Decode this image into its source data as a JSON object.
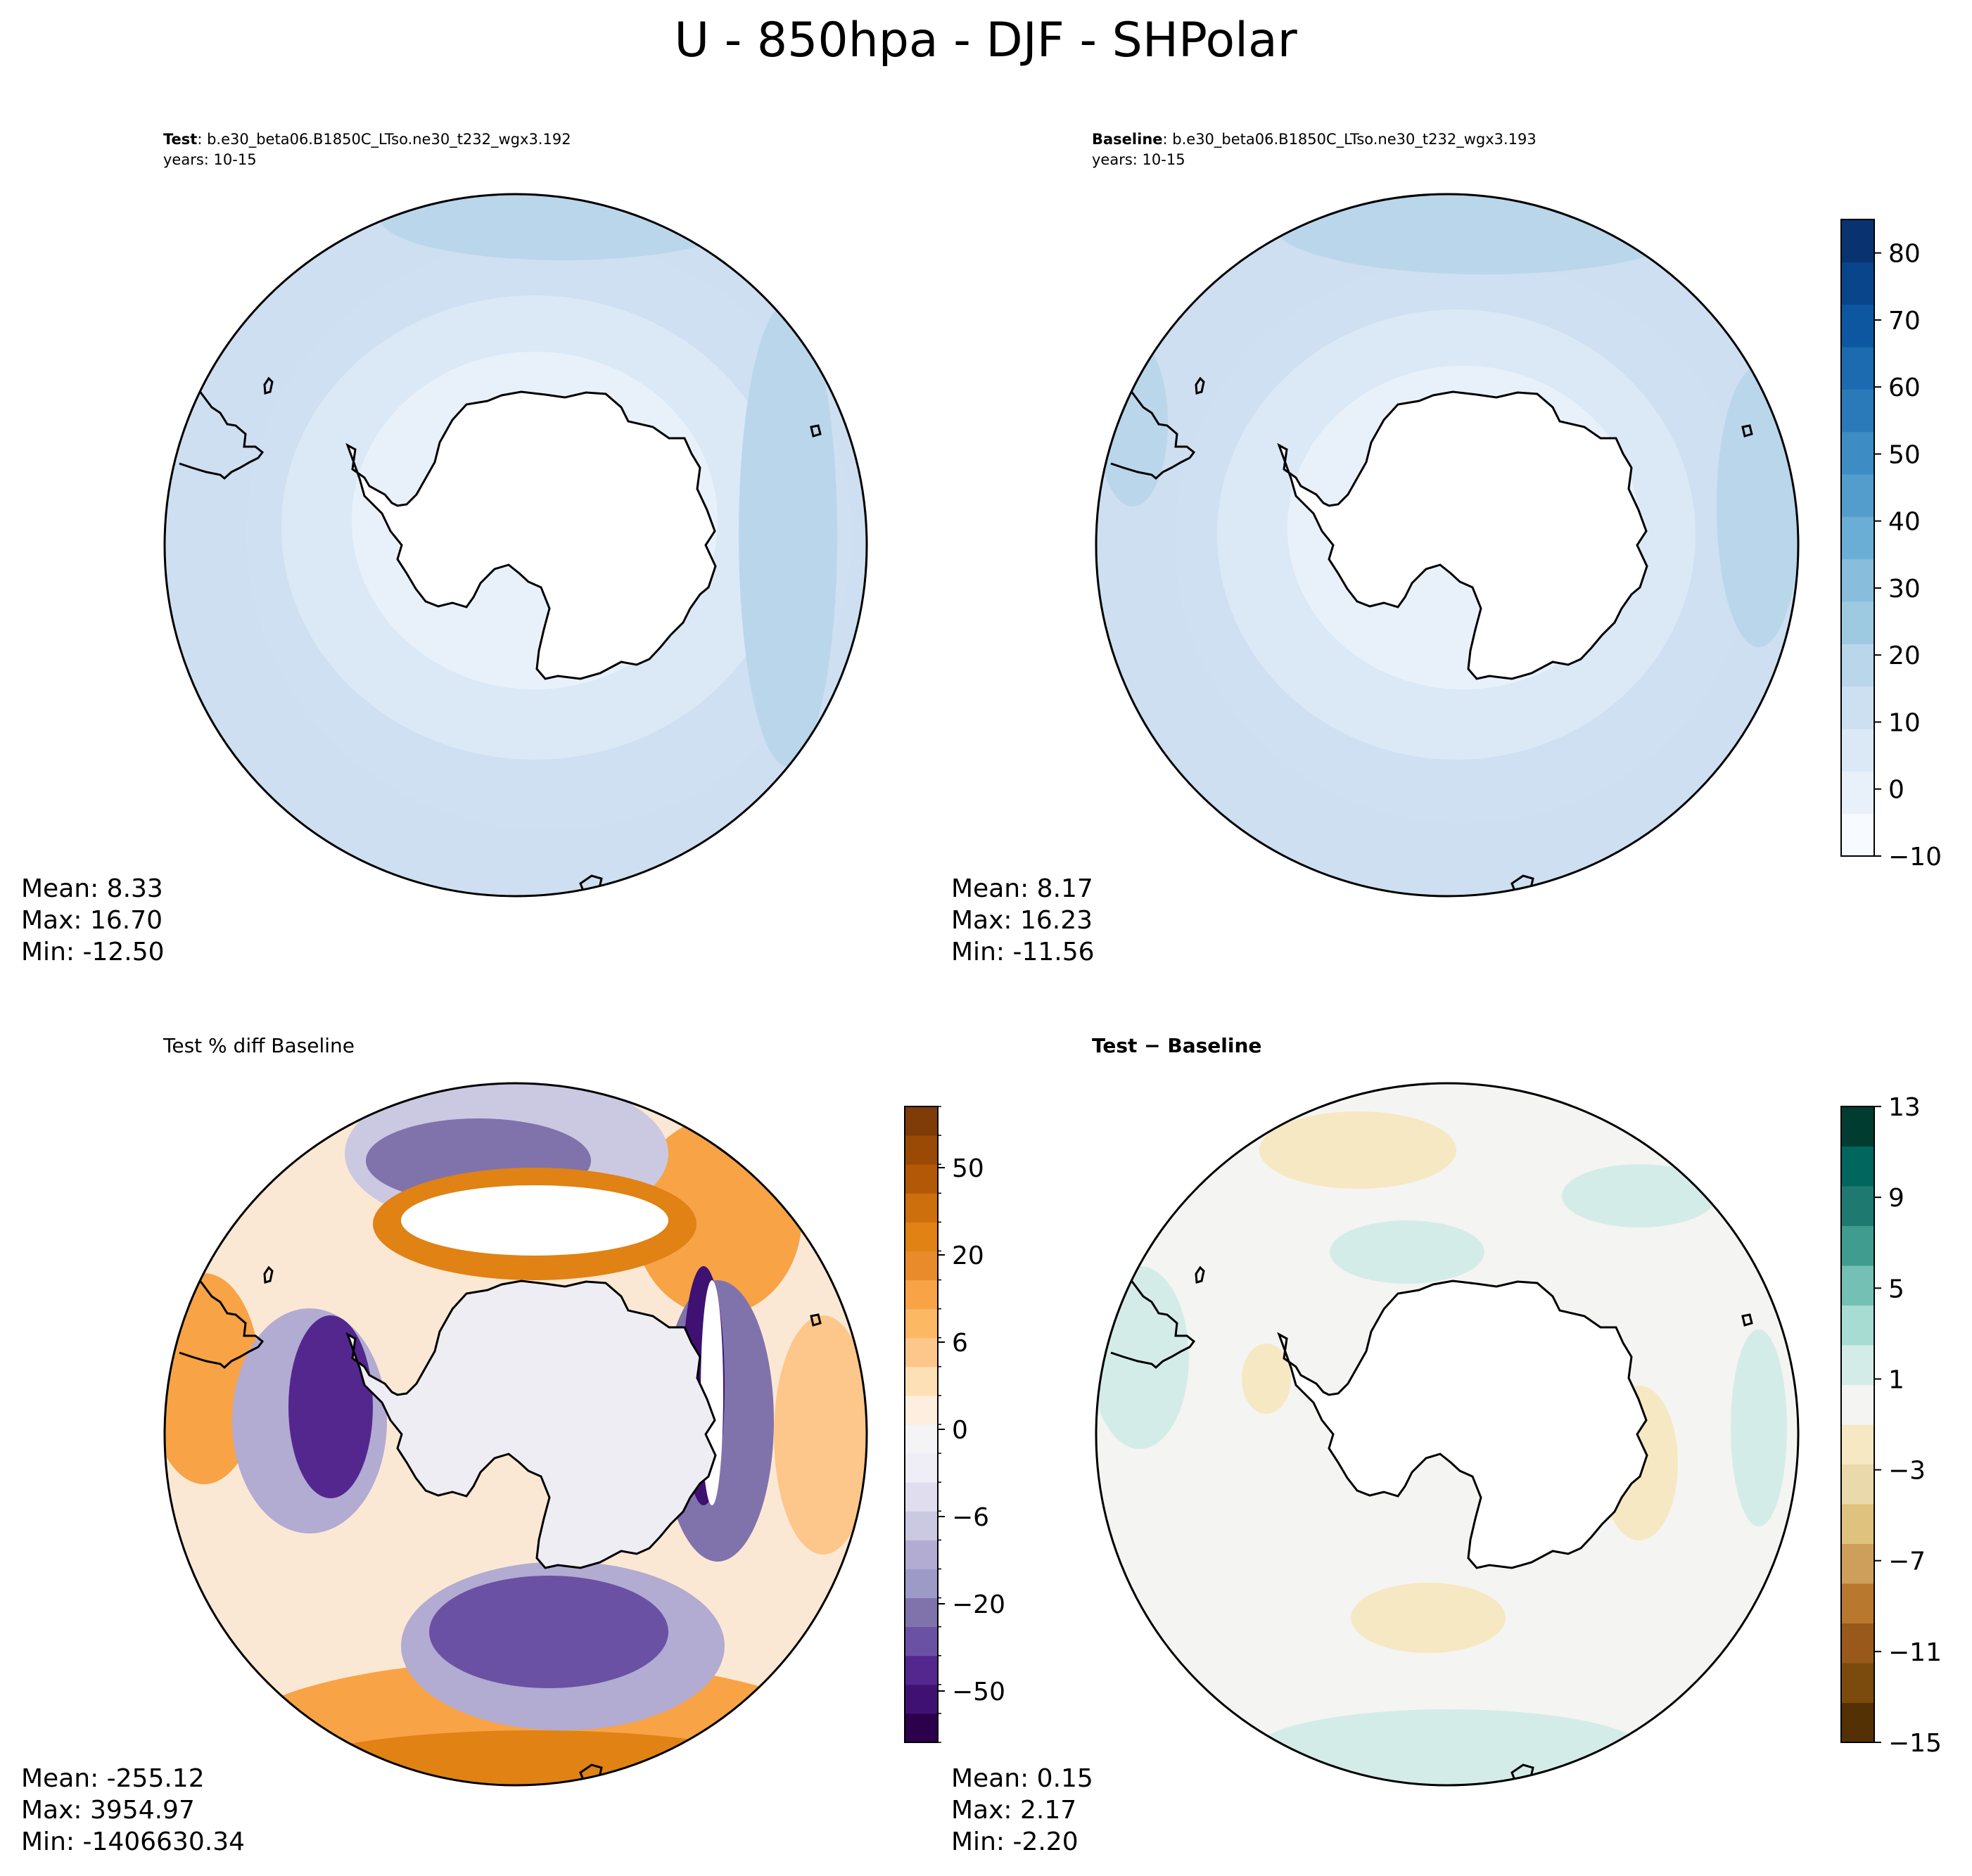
{
  "figure": {
    "title": "U - 850hpa - DJF - SHPolar"
  },
  "panels": [
    {
      "id": "test",
      "subtitle_bold": "Test",
      "subtitle_rest": ": b.e30_beta06.B1850C_LTso.ne30_t232_wgx3.192",
      "years": "years: 10-15",
      "stats": [
        "Mean:  8.33",
        "Max: 16.70",
        "Min: -12.50"
      ]
    },
    {
      "id": "baseline",
      "subtitle_bold": "Baseline",
      "subtitle_rest": ": b.e30_beta06.B1850C_LTso.ne30_t232_wgx3.193",
      "years": "years: 10-15",
      "stats": [
        "Mean:  8.17",
        "Max: 16.23",
        "Min: -11.56"
      ]
    },
    {
      "id": "pctdiff",
      "subtitle_bold": "",
      "subtitle_rest": "Test % diff Baseline",
      "years": "",
      "stats": [
        "Mean: -255.12",
        "Max: 3954.97",
        "Min: -1406630.34"
      ]
    },
    {
      "id": "diff",
      "subtitle_bold": "Test − Baseline",
      "subtitle_rest": "",
      "years": "",
      "stats": [
        "Mean:  0.15",
        "Max:  2.17",
        "Min: -2.20"
      ]
    }
  ],
  "chart_data": [
    {
      "type": "heatmap",
      "projection": "south-polar-stereographic",
      "title": "Test",
      "colorbar_ticks": [
        -10,
        0,
        10,
        20,
        30,
        40,
        50,
        60,
        70,
        80
      ],
      "colorbar_range": [
        -10,
        85
      ],
      "colors": [
        "#f7fbff",
        "#e8f1fa",
        "#dbe9f6",
        "#cde0f1",
        "#bad6eb",
        "#9ecae1",
        "#88bedc",
        "#6aaed6",
        "#529dcc",
        "#3d8dc4",
        "#2a7ab9",
        "#1c6aaf",
        "#0d57a1",
        "#08458a",
        "#083370"
      ],
      "stats": {
        "mean": 8.33,
        "max": 16.7,
        "min": -12.5
      }
    },
    {
      "type": "heatmap",
      "projection": "south-polar-stereographic",
      "title": "Baseline",
      "colorbar_ticks": [
        -10,
        0,
        10,
        20,
        30,
        40,
        50,
        60,
        70,
        80
      ],
      "colorbar_range": [
        -10,
        85
      ],
      "stats": {
        "mean": 8.17,
        "max": 16.23,
        "min": -11.56
      }
    },
    {
      "type": "heatmap",
      "projection": "south-polar-stereographic",
      "title": "Test % diff Baseline",
      "colorbar_tick_labels": [
        "50",
        "20",
        "6",
        "0",
        "−6",
        "−20",
        "−50"
      ],
      "colors": [
        "#2d004b",
        "#3f1172",
        "#54278f",
        "#6a51a3",
        "#8073ac",
        "#9e9ac8",
        "#b2abd2",
        "#cbc9e2",
        "#e0ddee",
        "#efedf5",
        "#f4f4f7",
        "#fdeee0",
        "#fee0b6",
        "#fdc68a",
        "#fdb863",
        "#f7a346",
        "#e98b2a",
        "#e08214",
        "#cc6f0c",
        "#b35806",
        "#9a4a05",
        "#7f3b08"
      ],
      "stats": {
        "mean": -255.12,
        "max": 3954.97,
        "min": -1406630.34
      }
    },
    {
      "type": "heatmap",
      "projection": "south-polar-stereographic",
      "title": "Test − Baseline",
      "colorbar_ticks": [
        13,
        9,
        5,
        1,
        -3,
        -7,
        -11,
        -15
      ],
      "colorbar_range": [
        -15,
        13
      ],
      "colors": [
        "#543005",
        "#7b4a0d",
        "#98591a",
        "#b8782e",
        "#cd9f5b",
        "#dfc27d",
        "#ead9aa",
        "#f6e8c3",
        "#f4f4f2",
        "#d4ece7",
        "#a7dcd2",
        "#74c0b4",
        "#3f9c8f",
        "#1e7a70",
        "#01665e",
        "#003c30"
      ],
      "stats": {
        "mean": 0.15,
        "max": 2.17,
        "min": -2.2
      }
    }
  ]
}
